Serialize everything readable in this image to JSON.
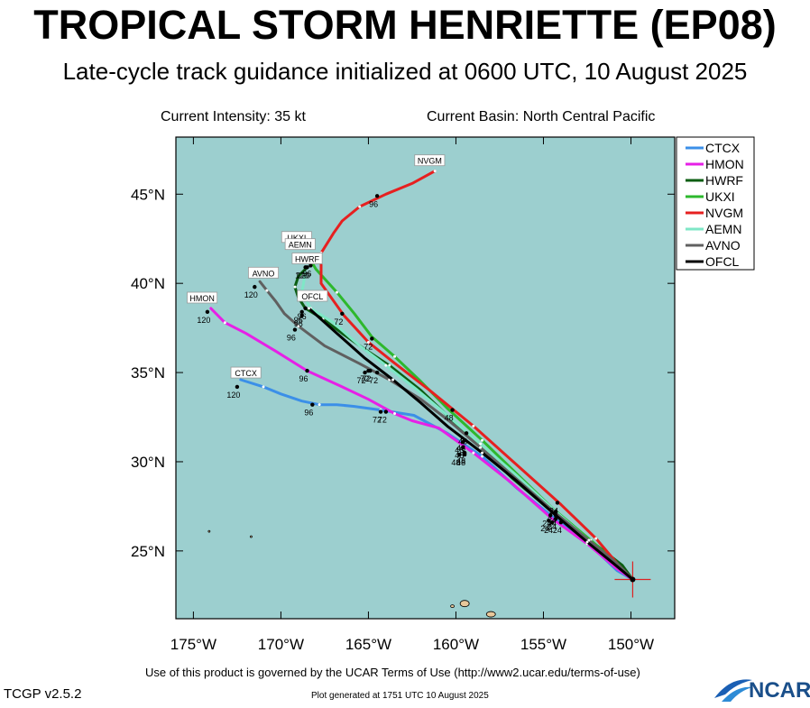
{
  "header": {
    "title": "TROPICAL STORM HENRIETTE (EP08)",
    "subtitle": "Late-cycle track guidance initialized at 0600 UTC, 10 August 2025",
    "intensity": "Current Intensity: 35 kt",
    "basin": "Current Basin: North Central Pacific"
  },
  "footer": {
    "terms": "Use of this product is governed by the UCAR Terms of Use (http://www2.ucar.edu/terms-of-use)",
    "version": "TCGP v2.5.2",
    "generated": "Plot generated at 1751 UTC   10 August 2025",
    "logo": "NCAR"
  },
  "colors": {
    "ocean": "#9ccfcf",
    "land": "#e8c79a",
    "CTCX": "#3b8fe8",
    "HMON": "#e620e6",
    "HWRF": "#0b5e12",
    "UKXI": "#2db82d",
    "NVGM": "#e62020",
    "AEMN": "#7fe7c7",
    "AVNO": "#606060",
    "OFCL": "#000000"
  },
  "chart_data": {
    "type": "line",
    "xlabel": "",
    "ylabel": "",
    "xlim": [
      -176,
      -147.5
    ],
    "ylim": [
      21.2,
      48.2
    ],
    "xticks": [
      -175,
      -170,
      -165,
      -160,
      -155,
      -150
    ],
    "xtick_labels": [
      "175°W",
      "170°W",
      "165°W",
      "160°W",
      "155°W",
      "150°W"
    ],
    "yticks": [
      25,
      30,
      35,
      40,
      45
    ],
    "ytick_labels": [
      "25°N",
      "30°N",
      "35°N",
      "40°N",
      "45°N"
    ],
    "grid": false,
    "legend_position": "top-right",
    "storm_position": {
      "lon": -149.9,
      "lat": 23.4
    },
    "series": [
      {
        "name": "CTCX",
        "points": [
          [
            -149.9,
            23.4
          ],
          [
            -150.8,
            23.9
          ],
          [
            -152.5,
            25.5
          ],
          [
            -154.2,
            26.7
          ],
          [
            -156.5,
            28.5
          ],
          [
            -158.5,
            30.3
          ],
          [
            -160.5,
            31.6
          ],
          [
            -162.4,
            32.6
          ],
          [
            -164.3,
            32.9
          ],
          [
            -165.8,
            33.1
          ],
          [
            -166.8,
            33.2
          ],
          [
            -167.8,
            33.2
          ],
          [
            -168.8,
            33.4
          ],
          [
            -170.0,
            33.8
          ],
          [
            -171.0,
            34.2
          ],
          [
            -172.3,
            34.6
          ]
        ],
        "labels": [
          {
            "text": "24",
            "lon": -154.7,
            "lat": 26.7
          },
          {
            "text": "48",
            "lon": -159.5,
            "lat": 30.4
          },
          {
            "text": "72",
            "lon": -164.3,
            "lat": 32.8
          },
          {
            "text": "96",
            "lon": -168.2,
            "lat": 33.2
          },
          {
            "text": "120",
            "lon": -172.5,
            "lat": 34.2
          }
        ]
      },
      {
        "name": "HMON",
        "points": [
          [
            -149.9,
            23.4
          ],
          [
            -150.8,
            24.0
          ],
          [
            -152.5,
            25.4
          ],
          [
            -154.5,
            26.8
          ],
          [
            -156.8,
            28.8
          ],
          [
            -159.0,
            30.5
          ],
          [
            -161.0,
            31.9
          ],
          [
            -162.5,
            32.3
          ],
          [
            -163.5,
            32.7
          ],
          [
            -165.0,
            33.5
          ],
          [
            -166.5,
            34.2
          ],
          [
            -168.5,
            35.1
          ],
          [
            -170.3,
            36.2
          ],
          [
            -172.0,
            37.2
          ],
          [
            -173.2,
            37.8
          ],
          [
            -174.0,
            38.6
          ]
        ],
        "labels": [
          {
            "text": "24",
            "lon": -154.5,
            "lat": 26.6
          },
          {
            "text": "48",
            "lon": -159.5,
            "lat": 30.5
          },
          {
            "text": "72",
            "lon": -164.0,
            "lat": 32.8
          },
          {
            "text": "96",
            "lon": -168.5,
            "lat": 35.1
          },
          {
            "text": "120",
            "lon": -174.2,
            "lat": 38.4
          }
        ]
      },
      {
        "name": "HWRF",
        "points": [
          [
            -149.9,
            23.4
          ],
          [
            -150.5,
            24.2
          ],
          [
            -152.2,
            25.5
          ],
          [
            -154.5,
            27.2
          ],
          [
            -156.8,
            29.1
          ],
          [
            -158.6,
            30.8
          ],
          [
            -160.4,
            32.5
          ],
          [
            -162.0,
            34.0
          ],
          [
            -163.8,
            35.4
          ],
          [
            -165.2,
            36.3
          ],
          [
            -166.5,
            37.2
          ],
          [
            -167.6,
            38.0
          ],
          [
            -168.6,
            38.6
          ],
          [
            -169.0,
            39.2
          ],
          [
            -169.2,
            39.8
          ],
          [
            -169.0,
            40.4
          ],
          [
            -168.5,
            40.9
          ]
        ],
        "labels": [
          {
            "text": "24",
            "lon": -154.6,
            "lat": 27.0
          },
          {
            "text": "48",
            "lon": -159.6,
            "lat": 31.1
          },
          {
            "text": "72",
            "lon": -165.0,
            "lat": 35.1
          },
          {
            "text": "96",
            "lon": -168.6,
            "lat": 38.6
          },
          {
            "text": "120",
            "lon": -168.5,
            "lat": 40.9
          }
        ]
      },
      {
        "name": "UKXI",
        "points": [
          [
            -149.9,
            23.4
          ],
          [
            -150.8,
            24.3
          ],
          [
            -152.3,
            25.6
          ],
          [
            -154.5,
            27.4
          ],
          [
            -156.5,
            29.3
          ],
          [
            -158.5,
            31.2
          ],
          [
            -160.5,
            33.0
          ],
          [
            -162.0,
            34.5
          ],
          [
            -163.5,
            35.9
          ],
          [
            -164.8,
            37.0
          ],
          [
            -165.8,
            38.3
          ],
          [
            -166.8,
            39.5
          ],
          [
            -168.0,
            40.8
          ],
          [
            -168.3,
            41.3
          ]
        ],
        "labels": [
          {
            "text": "24",
            "lon": -154.3,
            "lat": 27.2
          },
          {
            "text": "48",
            "lon": -159.4,
            "lat": 31.6
          },
          {
            "text": "72",
            "lon": -164.8,
            "lat": 36.9
          },
          {
            "text": "96",
            "lon": -168.3,
            "lat": 41.0
          }
        ]
      },
      {
        "name": "NVGM",
        "points": [
          [
            -149.9,
            23.4
          ],
          [
            -150.7,
            24.2
          ],
          [
            -152.0,
            25.7
          ],
          [
            -154.0,
            27.6
          ],
          [
            -156.5,
            29.8
          ],
          [
            -159.0,
            32.0
          ],
          [
            -161.5,
            34.0
          ],
          [
            -163.6,
            35.6
          ],
          [
            -165.0,
            36.7
          ],
          [
            -166.4,
            38.2
          ],
          [
            -167.7,
            40.0
          ],
          [
            -167.7,
            41.7
          ],
          [
            -167.0,
            42.8
          ],
          [
            -166.5,
            43.5
          ],
          [
            -165.5,
            44.3
          ],
          [
            -164.0,
            45.0
          ],
          [
            -162.5,
            45.6
          ],
          [
            -161.2,
            46.3
          ]
        ],
        "labels": [
          {
            "text": "24",
            "lon": -154.2,
            "lat": 27.7
          },
          {
            "text": "48",
            "lon": -160.2,
            "lat": 32.9
          },
          {
            "text": "72",
            "lon": -166.5,
            "lat": 38.3
          },
          {
            "text": "96",
            "lon": -164.5,
            "lat": 44.9
          }
        ]
      },
      {
        "name": "AEMN",
        "points": [
          [
            -149.9,
            23.4
          ],
          [
            -150.8,
            24.2
          ],
          [
            -152.3,
            25.5
          ],
          [
            -154.3,
            27.2
          ],
          [
            -156.5,
            29.2
          ],
          [
            -158.6,
            31.0
          ],
          [
            -160.6,
            32.7
          ],
          [
            -162.3,
            34.1
          ],
          [
            -164.0,
            35.4
          ],
          [
            -165.5,
            36.5
          ],
          [
            -167.0,
            37.8
          ],
          [
            -168.3,
            38.6
          ],
          [
            -168.8,
            39.5
          ],
          [
            -168.6,
            40.6
          ]
        ],
        "labels": [
          {
            "text": "24",
            "lon": -154.3,
            "lat": 27.0
          },
          {
            "text": "48",
            "lon": -159.5,
            "lat": 31.2
          },
          {
            "text": "72",
            "lon": -165.2,
            "lat": 35.0
          },
          {
            "text": "96",
            "lon": -168.8,
            "lat": 38.4
          },
          {
            "text": "120",
            "lon": -168.6,
            "lat": 40.9
          }
        ]
      },
      {
        "name": "AVNO",
        "points": [
          [
            -149.9,
            23.4
          ],
          [
            -150.8,
            24.3
          ],
          [
            -152.4,
            25.6
          ],
          [
            -154.4,
            27.2
          ],
          [
            -156.5,
            29.0
          ],
          [
            -158.6,
            30.8
          ],
          [
            -160.4,
            32.3
          ],
          [
            -162.0,
            33.5
          ],
          [
            -163.8,
            34.6
          ],
          [
            -165.5,
            35.5
          ],
          [
            -167.5,
            36.5
          ],
          [
            -169.0,
            37.6
          ],
          [
            -169.8,
            38.3
          ],
          [
            -170.3,
            39.0
          ],
          [
            -170.8,
            39.6
          ],
          [
            -171.2,
            40.1
          ]
        ],
        "labels": [
          {
            "text": "24",
            "lon": -154.3,
            "lat": 26.8
          },
          {
            "text": "48",
            "lon": -159.6,
            "lat": 30.8
          },
          {
            "text": "72",
            "lon": -164.9,
            "lat": 35.1
          },
          {
            "text": "96",
            "lon": -169.2,
            "lat": 37.4
          },
          {
            "text": "120",
            "lon": -171.5,
            "lat": 39.8
          }
        ]
      },
      {
        "name": "OFCL",
        "points": [
          [
            -149.9,
            23.4
          ],
          [
            -151.0,
            24.3
          ],
          [
            -152.5,
            25.5
          ],
          [
            -154.3,
            27.0
          ],
          [
            -156.5,
            28.9
          ],
          [
            -158.5,
            30.5
          ],
          [
            -160.5,
            32.0
          ],
          [
            -162.0,
            33.3
          ],
          [
            -163.6,
            34.6
          ],
          [
            -165.2,
            35.8
          ],
          [
            -166.8,
            37.2
          ],
          [
            -168.4,
            38.6
          ]
        ],
        "labels": [
          {
            "text": "24",
            "lon": -154.0,
            "lat": 26.6
          },
          {
            "text": "48",
            "lon": -159.8,
            "lat": 30.4
          },
          {
            "text": "72",
            "lon": -164.5,
            "lat": 35.0
          },
          {
            "text": "96",
            "lon": -168.8,
            "lat": 38.2
          }
        ]
      }
    ],
    "track_tags": [
      {
        "text": "NVGM",
        "lon": -161.5,
        "lat": 46.9
      },
      {
        "text": "UKXI",
        "lon": -169.1,
        "lat": 42.6
      },
      {
        "text": "AEMN",
        "lon": -168.9,
        "lat": 42.2
      },
      {
        "text": "HWRF",
        "lon": -168.5,
        "lat": 41.4
      },
      {
        "text": "AVNO",
        "lon": -171.0,
        "lat": 40.6
      },
      {
        "text": "OFCL",
        "lon": -168.2,
        "lat": 39.3
      },
      {
        "text": "HMON",
        "lon": -174.5,
        "lat": 39.2
      },
      {
        "text": "CTCX",
        "lon": -172.0,
        "lat": 35.0
      }
    ]
  }
}
